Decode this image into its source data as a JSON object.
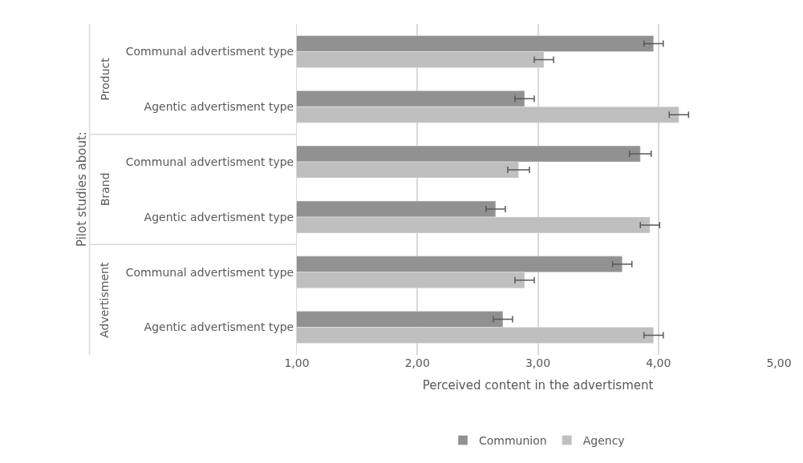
{
  "chart_data": {
    "type": "bar",
    "orientation": "horizontal",
    "xlabel": "Perceived content in the advertisment",
    "ylabel": "Pilot studies about:",
    "categories": [
      "Communal advertisment type",
      "Agentic advertisment type",
      "Communal advertisment type",
      "Agentic advertisment type",
      "Communal advertisment type",
      "Agentic advertisment type"
    ],
    "annotations": [
      "Product",
      "Brand",
      "Advertisment"
    ],
    "series": [
      {
        "name": "Communion",
        "color": "#919191",
        "values": [
          3.96,
          2.89,
          3.85,
          2.65,
          3.7,
          2.71
        ],
        "errors": [
          0.08,
          0.08,
          0.09,
          0.08,
          0.08,
          0.08
        ]
      },
      {
        "name": "Agency",
        "color": "#bfbfbf",
        "values": [
          3.05,
          4.17,
          2.84,
          3.93,
          2.89,
          3.96
        ],
        "errors": [
          0.08,
          0.08,
          0.09,
          0.08,
          0.08,
          0.08
        ]
      }
    ],
    "xlim": [
      1,
      5
    ],
    "xticks": [
      {
        "value": 1,
        "label": "1,00"
      },
      {
        "value": 2,
        "label": "2,00"
      },
      {
        "value": 3,
        "label": "3,00"
      },
      {
        "value": 4,
        "label": "4,00"
      },
      {
        "value": 5,
        "label": "5,00"
      }
    ],
    "grid": "x",
    "legend": "bottom"
  }
}
